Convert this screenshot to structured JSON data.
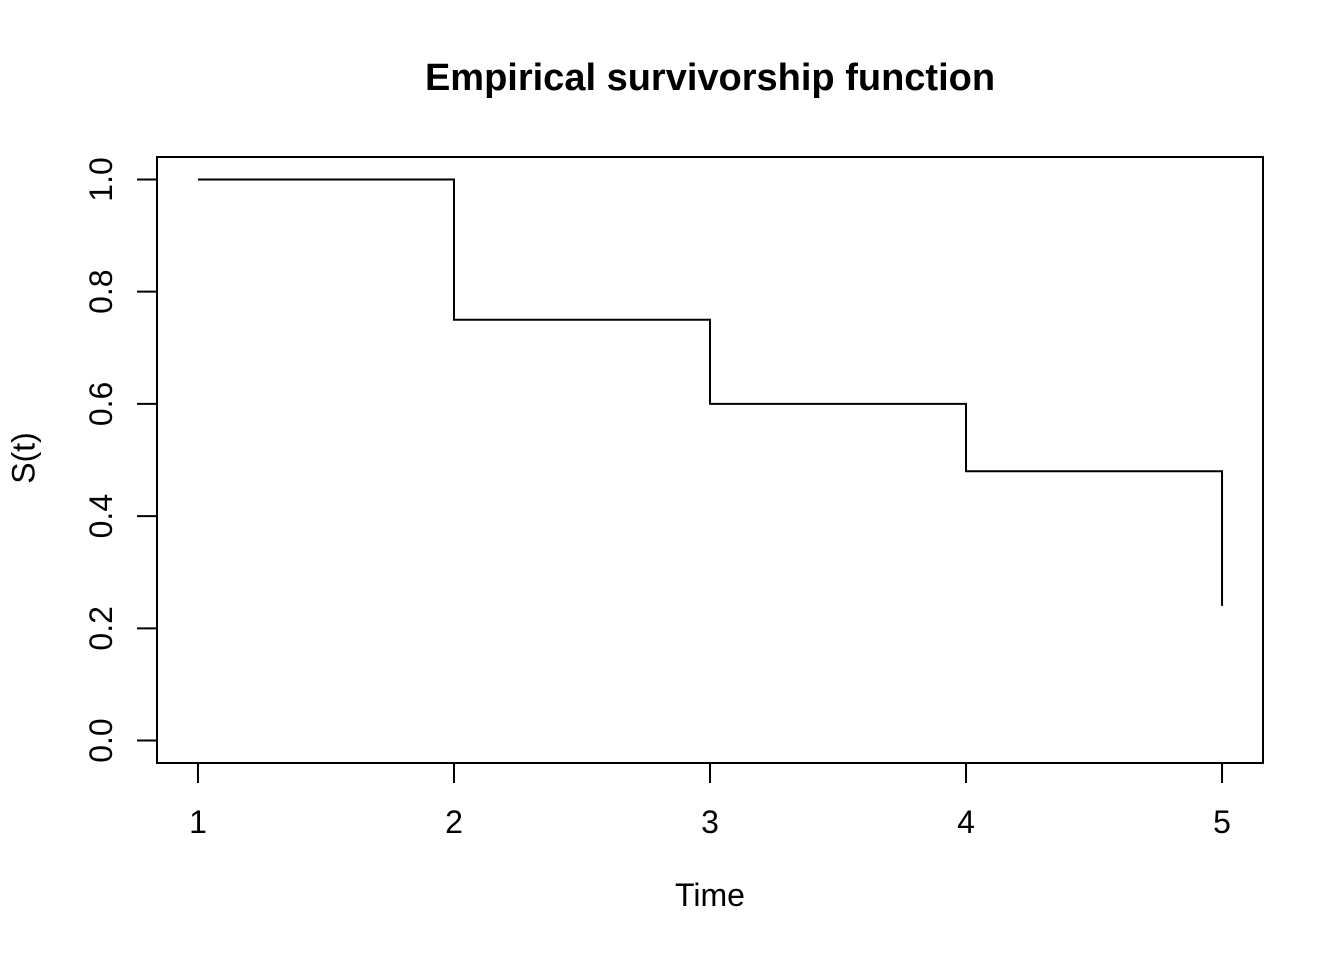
{
  "chart_data": {
    "type": "line",
    "subtype": "step-after",
    "title": "Empirical survivorship function",
    "xlabel": "Time",
    "ylabel": "S(t)",
    "x": [
      1,
      2,
      3,
      4,
      5
    ],
    "y": [
      1.0,
      0.75,
      0.6,
      0.48,
      0.24
    ],
    "x_ticks": [
      1,
      2,
      3,
      4,
      5
    ],
    "x_tick_labels": [
      "1",
      "2",
      "3",
      "4",
      "5"
    ],
    "y_ticks": [
      0.0,
      0.2,
      0.4,
      0.6,
      0.8,
      1.0
    ],
    "y_tick_labels": [
      "0.0",
      "0.2",
      "0.4",
      "0.6",
      "0.8",
      "1.0"
    ],
    "xlim": [
      0.84,
      5.16
    ],
    "ylim": [
      -0.04,
      1.04
    ],
    "grid": false,
    "legend": null,
    "line_color": "#000000",
    "axis_color": "#000000",
    "background_color": "#ffffff"
  }
}
